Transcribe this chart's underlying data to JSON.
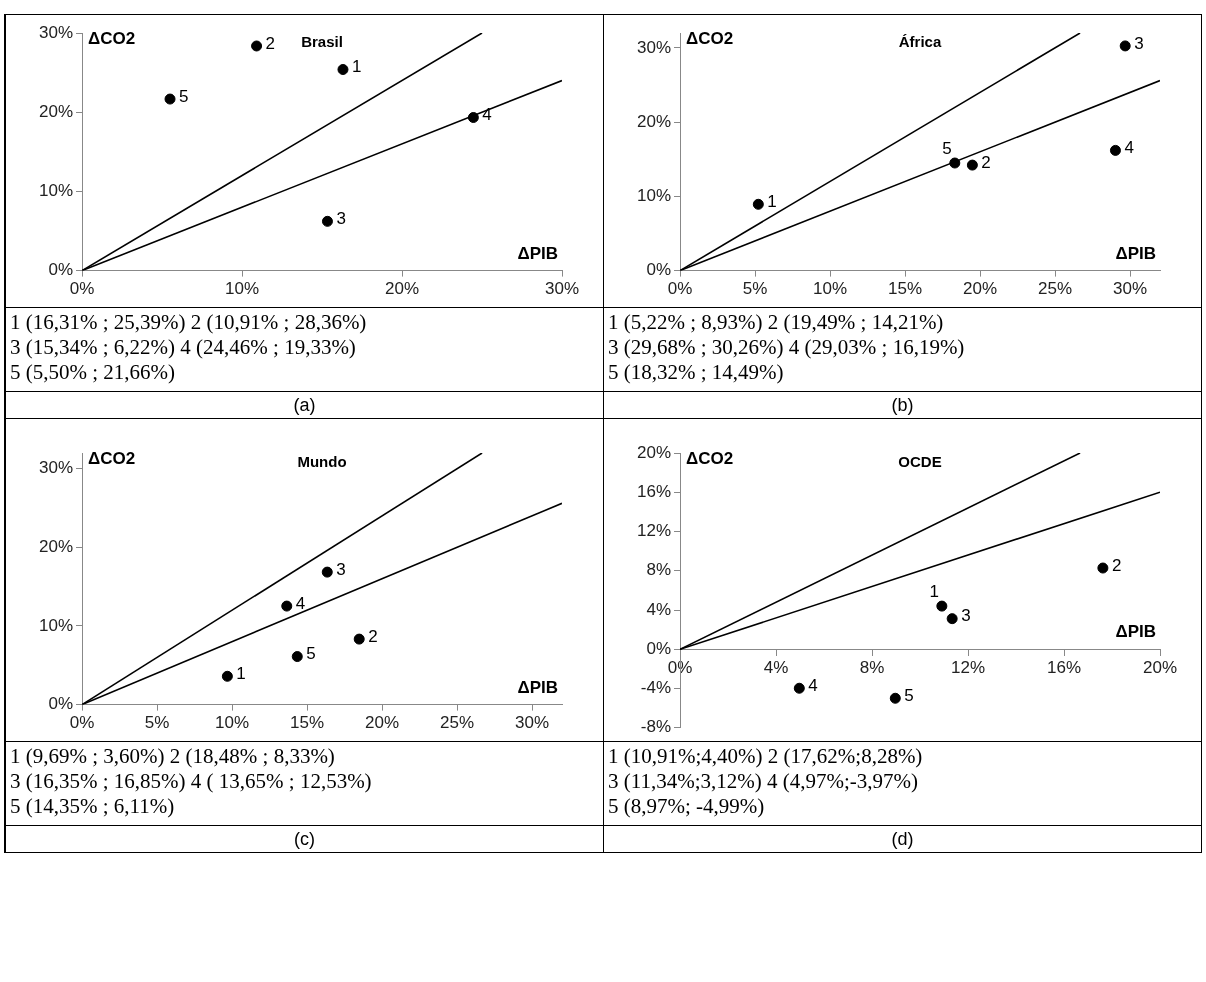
{
  "chart_data": [
    {
      "type": "scatter",
      "title": "Brasil",
      "xlabel": "ΔPIB",
      "ylabel": "ΔCO2",
      "xlim": [
        0,
        30
      ],
      "ylim": [
        0,
        30
      ],
      "xticks": [
        {
          "value": 0,
          "label": "0%"
        },
        {
          "value": 10,
          "label": "10%"
        },
        {
          "value": 20,
          "label": "20%"
        },
        {
          "value": 30,
          "label": "30%"
        }
      ],
      "yticks": [
        {
          "value": 0,
          "label": "0%"
        },
        {
          "value": 10,
          "label": "10%"
        },
        {
          "value": 20,
          "label": "20%"
        },
        {
          "value": 30,
          "label": "30%"
        }
      ],
      "series": [
        {
          "type": "scatter",
          "color": "#000000",
          "marker": "circle",
          "x": [
            16.31,
            10.91,
            15.34,
            24.46,
            5.5
          ],
          "values": [
            25.39,
            28.36,
            6.22,
            19.33,
            21.66
          ]
        },
        {
          "type": "line",
          "color": "#000000",
          "marker": "none",
          "x": [
            0,
            25
          ],
          "values": [
            0,
            30
          ]
        },
        {
          "type": "line",
          "color": "#000000",
          "marker": "none",
          "x": [
            0,
            30
          ],
          "values": [
            0,
            24
          ]
        }
      ],
      "annotations": [
        {
          "text": "1",
          "x": 16.31,
          "y": 25.39
        },
        {
          "text": "2",
          "x": 10.91,
          "y": 28.36
        },
        {
          "text": "3",
          "x": 15.34,
          "y": 6.22
        },
        {
          "text": "4",
          "x": 24.46,
          "y": 19.33
        },
        {
          "text": "5",
          "x": 5.5,
          "y": 21.66
        },
        "1 (16,31% ; 25,39%) 2 (10,91% ; 28,36%)",
        "3 (15,34% ; 6,22%) 4 (24,46% ; 19,33%)",
        "5 (5,50% ; 21,66%)",
        "(a)"
      ]
    },
    {
      "type": "scatter",
      "title": "África",
      "xlabel": "ΔPIB",
      "ylabel": "ΔCO2",
      "xlim": [
        0,
        32
      ],
      "ylim": [
        0,
        32
      ],
      "xticks": [
        {
          "value": 0,
          "label": "0%"
        },
        {
          "value": 5,
          "label": "5%"
        },
        {
          "value": 10,
          "label": "10%"
        },
        {
          "value": 15,
          "label": "15%"
        },
        {
          "value": 20,
          "label": "20%"
        },
        {
          "value": 25,
          "label": "25%"
        },
        {
          "value": 30,
          "label": "30%"
        }
      ],
      "yticks": [
        {
          "value": 0,
          "label": "0%"
        },
        {
          "value": 10,
          "label": "10%"
        },
        {
          "value": 20,
          "label": "20%"
        },
        {
          "value": 30,
          "label": "30%"
        }
      ],
      "series": [
        {
          "type": "scatter",
          "color": "#000000",
          "marker": "circle",
          "x": [
            5.22,
            19.49,
            29.68,
            29.03,
            18.32
          ],
          "values": [
            8.93,
            14.21,
            30.26,
            16.19,
            14.49
          ]
        },
        {
          "type": "line",
          "color": "#000000",
          "marker": "none",
          "x": [
            0,
            26.67
          ],
          "values": [
            0,
            32
          ]
        },
        {
          "type": "line",
          "color": "#000000",
          "marker": "none",
          "x": [
            0,
            32
          ],
          "values": [
            0,
            25.6
          ]
        }
      ],
      "annotations": [
        {
          "text": "1",
          "x": 5.22,
          "y": 8.93
        },
        {
          "text": "2",
          "x": 19.49,
          "y": 14.21
        },
        {
          "text": "3",
          "x": 29.68,
          "y": 30.26
        },
        {
          "text": "4",
          "x": 29.03,
          "y": 16.19
        },
        {
          "text": "5",
          "x": 18.32,
          "y": 14.49
        },
        "1 (5,22% ; 8,93%) 2 (19,49% ; 14,21%)",
        "3 (29,68% ; 30,26%) 4 (29,03% ; 16,19%)",
        "5 (18,32% ; 14,49%)",
        "(b)"
      ]
    },
    {
      "type": "scatter",
      "title": "Mundo",
      "xlabel": "ΔPIB",
      "ylabel": "ΔCO2",
      "xlim": [
        0,
        32
      ],
      "ylim": [
        0,
        32
      ],
      "xticks": [
        {
          "value": 0,
          "label": "0%"
        },
        {
          "value": 5,
          "label": "5%"
        },
        {
          "value": 10,
          "label": "10%"
        },
        {
          "value": 15,
          "label": "15%"
        },
        {
          "value": 20,
          "label": "20%"
        },
        {
          "value": 25,
          "label": "25%"
        },
        {
          "value": 30,
          "label": "30%"
        }
      ],
      "yticks": [
        {
          "value": 0,
          "label": "0%"
        },
        {
          "value": 10,
          "label": "10%"
        },
        {
          "value": 20,
          "label": "20%"
        },
        {
          "value": 30,
          "label": "30%"
        }
      ],
      "series": [
        {
          "type": "scatter",
          "color": "#000000",
          "marker": "circle",
          "x": [
            9.69,
            18.48,
            16.35,
            13.65,
            14.35
          ],
          "values": [
            3.6,
            8.33,
            16.85,
            12.53,
            6.11
          ]
        },
        {
          "type": "line",
          "color": "#000000",
          "marker": "none",
          "x": [
            0,
            26.67
          ],
          "values": [
            0,
            32
          ]
        },
        {
          "type": "line",
          "color": "#000000",
          "marker": "none",
          "x": [
            0,
            32
          ],
          "values": [
            0,
            25.6
          ]
        }
      ],
      "annotations": [
        {
          "text": "1",
          "x": 9.69,
          "y": 3.6
        },
        {
          "text": "2",
          "x": 18.48,
          "y": 8.33
        },
        {
          "text": "3",
          "x": 16.35,
          "y": 16.85
        },
        {
          "text": "4",
          "x": 13.65,
          "y": 12.53
        },
        {
          "text": "5",
          "x": 14.35,
          "y": 6.11
        },
        "1 (9,69% ; 3,60%) 2 (18,48% ; 8,33%)",
        "3 (16,35% ; 16,85%) 4 ( 13,65% ; 12,53%)",
        "5 (14,35% ; 6,11%)",
        "(c)"
      ]
    },
    {
      "type": "scatter",
      "title": "OCDE",
      "xlabel": "ΔPIB",
      "ylabel": "ΔCO2",
      "xlim": [
        0,
        20
      ],
      "ylim": [
        -8,
        20
      ],
      "xticks": [
        {
          "value": 0,
          "label": "0%"
        },
        {
          "value": 4,
          "label": "4%"
        },
        {
          "value": 8,
          "label": "8%"
        },
        {
          "value": 12,
          "label": "12%"
        },
        {
          "value": 16,
          "label": "16%"
        },
        {
          "value": 20,
          "label": "20%"
        }
      ],
      "yticks": [
        {
          "value": -8,
          "label": "-8%"
        },
        {
          "value": -4,
          "label": "-4%"
        },
        {
          "value": 0,
          "label": "0%"
        },
        {
          "value": 4,
          "label": "4%"
        },
        {
          "value": 8,
          "label": "8%"
        },
        {
          "value": 12,
          "label": "12%"
        },
        {
          "value": 16,
          "label": "16%"
        },
        {
          "value": 20,
          "label": "20%"
        }
      ],
      "series": [
        {
          "type": "scatter",
          "color": "#000000",
          "marker": "circle",
          "x": [
            10.91,
            17.62,
            11.34,
            4.97,
            8.97
          ],
          "values": [
            4.4,
            8.28,
            3.12,
            -3.97,
            -4.99
          ]
        },
        {
          "type": "line",
          "color": "#000000",
          "marker": "none",
          "x": [
            0,
            16.67
          ],
          "values": [
            0,
            20
          ]
        },
        {
          "type": "line",
          "color": "#000000",
          "marker": "none",
          "x": [
            0,
            20
          ],
          "values": [
            0,
            16
          ]
        }
      ],
      "annotations": [
        {
          "text": "1",
          "x": 10.91,
          "y": 4.4
        },
        {
          "text": "2",
          "x": 17.62,
          "y": 8.28
        },
        {
          "text": "3",
          "x": 11.34,
          "y": 3.12
        },
        {
          "text": "4",
          "x": 4.97,
          "y": -3.97
        },
        {
          "text": "5",
          "x": 8.97,
          "y": -4.99
        },
        "1 (10,91%;4,40%) 2 (17,62%;8,28%)",
        "3 (11,34%;3,12%) 4 (4,97%;-3,97%)",
        "5 (8,97%; -4,99%)",
        "(d)"
      ]
    }
  ]
}
